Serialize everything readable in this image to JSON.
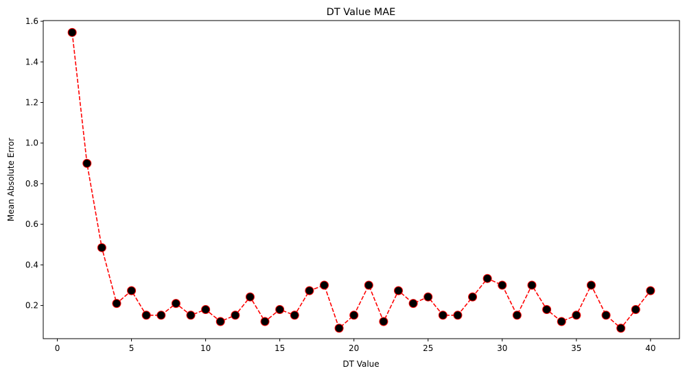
{
  "chart_data": {
    "type": "line",
    "title": "DT Value MAE",
    "xlabel": "DT Value",
    "ylabel": "Mean Absolute Error",
    "xlim": [
      -0.95,
      41.95
    ],
    "ylim": [
      0.0365,
      1.6035
    ],
    "xticks": [
      0,
      5,
      10,
      15,
      20,
      25,
      30,
      35,
      40
    ],
    "yticks": [
      0.2,
      0.4,
      0.6,
      0.8,
      1.0,
      1.2,
      1.4,
      1.6
    ],
    "ytick_labels": [
      "0.2",
      "0.4",
      "0.6",
      "0.8",
      "1.0",
      "1.2",
      "1.4",
      "1.6"
    ],
    "grid": false,
    "line_color": "#ff0000",
    "line_style": "dashed",
    "marker_face_color": "#000000",
    "marker_edge_color": "#ff0000",
    "marker": "circle",
    "series": [
      {
        "x": [
          1,
          2,
          3,
          4,
          5,
          6,
          7,
          8,
          9,
          10,
          11,
          12,
          13,
          14,
          15,
          16,
          17,
          18,
          19,
          20,
          21,
          22,
          23,
          24,
          25,
          26,
          27,
          28,
          29,
          30,
          31,
          32,
          33,
          34,
          35,
          36,
          37,
          38,
          39,
          40
        ],
        "values": [
          1.545,
          0.9,
          0.485,
          0.21,
          0.273,
          0.152,
          0.152,
          0.21,
          0.152,
          0.18,
          0.121,
          0.152,
          0.242,
          0.121,
          0.18,
          0.152,
          0.273,
          0.3,
          0.088,
          0.152,
          0.3,
          0.121,
          0.273,
          0.21,
          0.242,
          0.152,
          0.152,
          0.242,
          0.333,
          0.3,
          0.152,
          0.3,
          0.18,
          0.121,
          0.152,
          0.3,
          0.152,
          0.088,
          0.18,
          0.273
        ]
      }
    ]
  }
}
